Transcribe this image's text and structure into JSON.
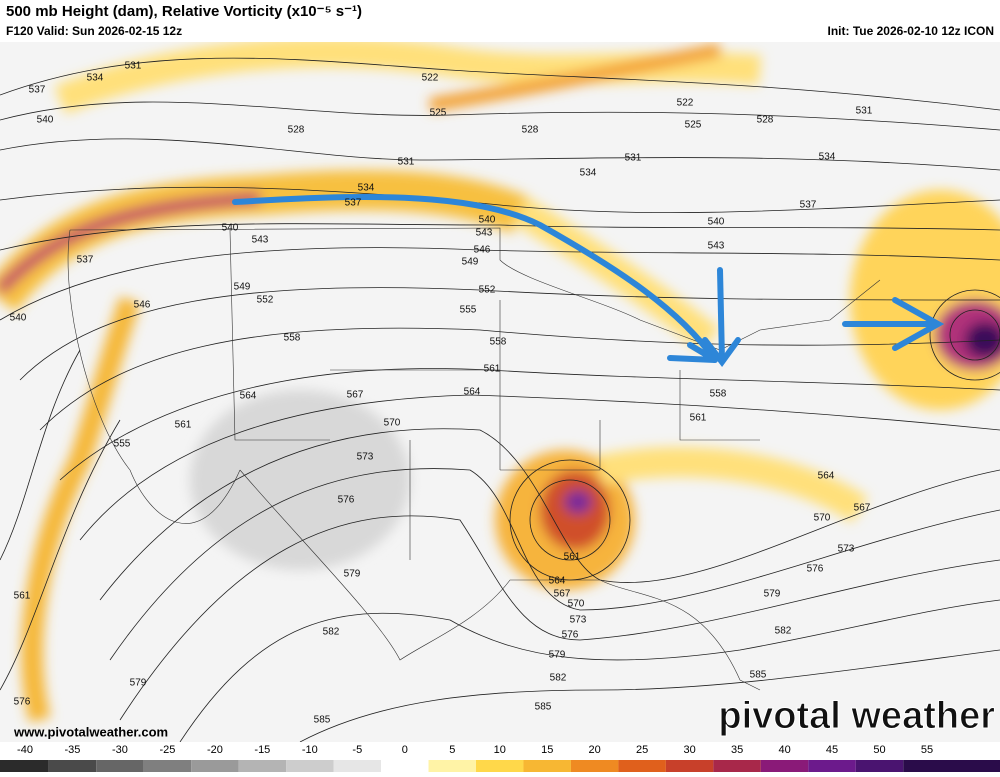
{
  "header": {
    "title": "500 mb Height (dam), Relative Vorticity (x10⁻⁵ s⁻¹)",
    "valid": "F120 Valid: Sun 2026-02-15 12z",
    "init": "Init: Tue 2026-02-10 12z ICON"
  },
  "contour_labels": [
    "531",
    "534",
    "537",
    "540",
    "522",
    "525",
    "528",
    "528",
    "531",
    "534",
    "537",
    "540",
    "543",
    "546",
    "549",
    "552",
    "555",
    "558",
    "558",
    "561",
    "564",
    "567",
    "570",
    "564",
    "561",
    "555",
    "573",
    "576",
    "579",
    "582",
    "585",
    "579",
    "576",
    "561",
    "540",
    "537",
    "522",
    "525",
    "528",
    "531",
    "531",
    "534",
    "537",
    "540",
    "543",
    "561",
    "558",
    "564",
    "567",
    "570",
    "573",
    "576",
    "579",
    "582",
    "585",
    "585",
    "582",
    "579",
    "576",
    "573",
    "570",
    "567",
    "564",
    "561",
    "534",
    "552",
    "549",
    "546",
    "543",
    "540"
  ],
  "colorbar": {
    "ticks": [
      -40,
      -35,
      -30,
      -25,
      -20,
      -15,
      -10,
      -5,
      0,
      5,
      10,
      15,
      20,
      25,
      30,
      35,
      40,
      45,
      50,
      55
    ],
    "colors": [
      "#2b2b2b",
      "#4a4a4a",
      "#666666",
      "#7f7f7f",
      "#9a9a9a",
      "#b4b4b4",
      "#cdcdcd",
      "#e6e6e6",
      "#ffffff",
      "#fff3a6",
      "#ffd84a",
      "#f7b733",
      "#ef8a22",
      "#e0601c",
      "#c8402a",
      "#a8284a",
      "#8a1a78",
      "#6c1a8c",
      "#4a1470",
      "#2a0c4a"
    ]
  },
  "footer": {
    "website": "www.pivotalweather.com",
    "logo": "pivotal weather"
  }
}
